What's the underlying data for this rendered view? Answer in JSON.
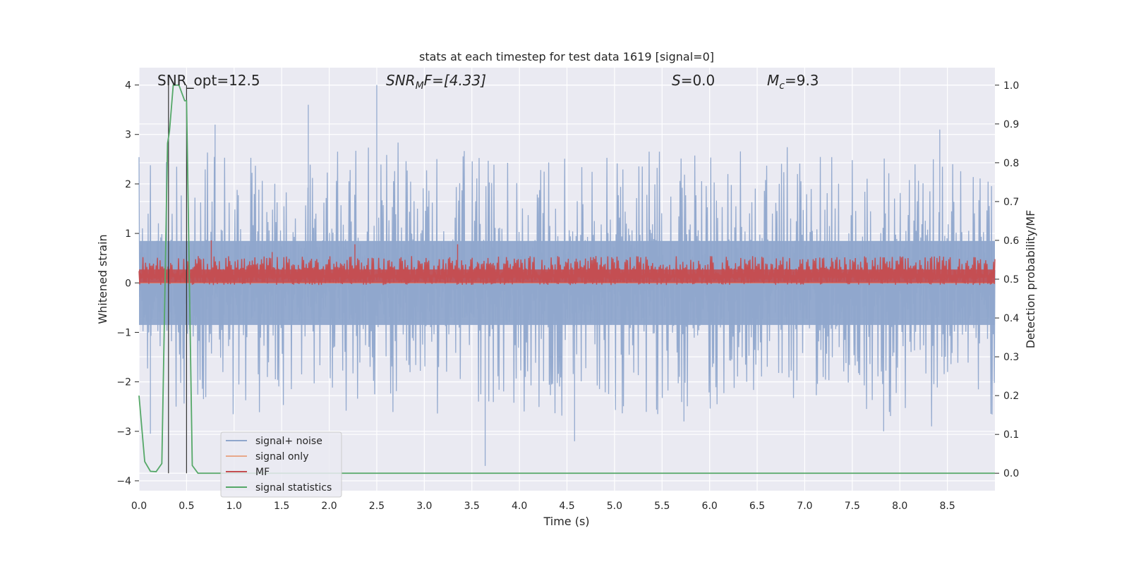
{
  "chart_data": {
    "type": "line",
    "title": "stats at each timestep for test data 1619 [signal=0]",
    "xlabel": "Time (s)",
    "ylabel_left": "Whitened strain",
    "ylabel_right": "Detection probability/MF",
    "xlim": [
      0.0,
      9.0
    ],
    "ylim_left": [
      -4.2,
      4.35
    ],
    "ylim_right": [
      -0.045,
      1.045
    ],
    "xticks": [
      0.0,
      0.5,
      1.0,
      1.5,
      2.0,
      2.5,
      3.0,
      3.5,
      4.0,
      4.5,
      5.0,
      5.5,
      6.0,
      6.5,
      7.0,
      7.5,
      8.0,
      8.5
    ],
    "xtick_labels": [
      "0.0",
      "0.5",
      "1.0",
      "1.5",
      "2.0",
      "2.5",
      "3.0",
      "3.5",
      "4.0",
      "4.5",
      "5.0",
      "5.5",
      "6.0",
      "6.5",
      "7.0",
      "7.5",
      "8.0",
      "8.5"
    ],
    "yticks_left": [
      -4,
      -3,
      -2,
      -1,
      0,
      1,
      2,
      3,
      4
    ],
    "ytick_labels_left": [
      "−4",
      "−3",
      "−2",
      "−1",
      "0",
      "1",
      "2",
      "3",
      "4"
    ],
    "yticks_right": [
      0.0,
      0.1,
      0.2,
      0.3,
      0.4,
      0.5,
      0.6,
      0.7,
      0.8,
      0.9,
      1.0
    ],
    "ytick_labels_right": [
      "0.0",
      "0.1",
      "0.2",
      "0.3",
      "0.4",
      "0.5",
      "0.6",
      "0.7",
      "0.8",
      "0.9",
      "1.0"
    ],
    "grid": true,
    "legend_placement": "lower-left",
    "annotations": {
      "snr_opt": "SNR_opt=12.5",
      "snr_mf_base": "SNR",
      "snr_mf_sub": "M",
      "snr_mf_rest": "F=[4.33]",
      "s_var": "S",
      "s_rest": "=0.0",
      "mc_var": "M",
      "mc_sub": "c",
      "mc_rest": "=9.3"
    },
    "series": [
      {
        "name": "signal+ noise",
        "color": "#8fa6cc",
        "axis": "left",
        "style": "dense noise band",
        "envelope_upper_typical": 1.9,
        "envelope_lower_typical": -1.9,
        "spikes": [
          [
            1.78,
            3.6
          ],
          [
            2.5,
            4.0
          ],
          [
            3.64,
            -3.7
          ],
          [
            4.58,
            -3.2
          ],
          [
            8.42,
            3.1
          ],
          [
            7.83,
            -3.0
          ],
          [
            0.12,
            -3.05
          ],
          [
            0.8,
            3.2
          ],
          [
            5.73,
            -2.8
          ]
        ]
      },
      {
        "name": "signal only",
        "color": "#e8a88a",
        "axis": "left",
        "x": [
          0.0,
          9.0
        ],
        "y": [
          0.0,
          0.0
        ]
      },
      {
        "name": "MF",
        "color": "#c44e52",
        "axis": "right",
        "style": "dense noise band",
        "baseline": 0.5,
        "envelope_upper_typical": 0.57,
        "spikes": [
          [
            0.76,
            0.6
          ],
          [
            2.27,
            0.59
          ],
          [
            3.35,
            0.59
          ],
          [
            1.4,
            0.57
          ]
        ]
      },
      {
        "name": "signal statistics",
        "color": "#55a868",
        "axis": "right",
        "x": [
          0.0,
          0.06,
          0.12,
          0.18,
          0.24,
          0.3,
          0.32,
          0.36,
          0.42,
          0.48,
          0.5,
          0.56,
          0.62,
          0.7,
          9.0
        ],
        "y": [
          0.2,
          0.03,
          0.005,
          0.004,
          0.025,
          0.85,
          0.88,
          1.0,
          1.0,
          0.96,
          0.96,
          0.02,
          0.0,
          0.0,
          0.0
        ]
      }
    ],
    "vertical_markers": [
      0.31,
      0.5
    ]
  }
}
